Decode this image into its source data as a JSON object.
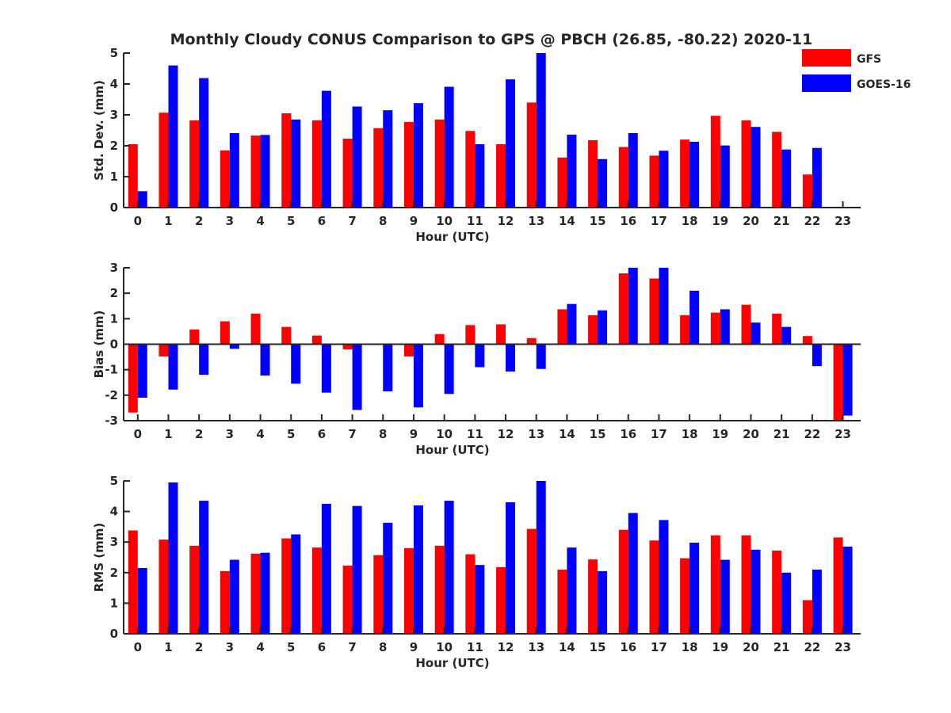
{
  "title": "Monthly Cloudy CONUS Comparison to GPS @ PBCH (26.85, -80.22) 2020-11",
  "colors": {
    "GFS": "#ff0000",
    "GOES-16": "#0000ff"
  },
  "legend": {
    "placement": "top-right",
    "entries": [
      "GFS",
      "GOES-16"
    ]
  },
  "chart_data": [
    {
      "type": "bar",
      "xlabel": "Hour (UTC)",
      "ylabel": "Std. Dev. (mm)",
      "ylim": [
        0,
        5
      ],
      "yticks": [
        0,
        1,
        2,
        3,
        4,
        5
      ],
      "categories": [
        "0",
        "1",
        "2",
        "3",
        "4",
        "5",
        "6",
        "7",
        "8",
        "9",
        "10",
        "11",
        "12",
        "13",
        "14",
        "15",
        "16",
        "17",
        "18",
        "19",
        "20",
        "21",
        "22",
        "23"
      ],
      "series": [
        {
          "name": "GFS",
          "values": [
            2.05,
            3.07,
            2.82,
            1.85,
            2.33,
            3.05,
            2.82,
            2.23,
            2.57,
            2.77,
            2.85,
            2.48,
            2.05,
            3.4,
            1.62,
            2.18,
            1.96,
            1.68,
            2.2,
            2.97,
            2.82,
            2.45,
            1.07,
            null
          ]
        },
        {
          "name": "GOES-16",
          "values": [
            0.53,
            4.6,
            4.19,
            2.41,
            2.35,
            2.85,
            3.78,
            3.27,
            3.15,
            3.38,
            3.91,
            2.05,
            4.15,
            5.0,
            2.36,
            1.57,
            2.41,
            1.84,
            2.13,
            2.01,
            2.61,
            1.88,
            1.93,
            null
          ]
        }
      ]
    },
    {
      "type": "bar",
      "xlabel": "Hour (UTC)",
      "ylabel": "Bias (mm)",
      "ylim": [
        -3,
        3
      ],
      "yticks": [
        -3,
        -2,
        -1,
        0,
        1,
        2,
        3
      ],
      "categories": [
        "0",
        "1",
        "2",
        "3",
        "4",
        "5",
        "6",
        "7",
        "8",
        "9",
        "10",
        "11",
        "12",
        "13",
        "14",
        "15",
        "16",
        "17",
        "18",
        "19",
        "20",
        "21",
        "22",
        "23"
      ],
      "series": [
        {
          "name": "GFS",
          "values": [
            -2.68,
            -0.48,
            0.58,
            0.9,
            1.2,
            0.68,
            0.34,
            -0.2,
            -0.03,
            -0.48,
            0.4,
            0.75,
            0.78,
            0.24,
            1.37,
            1.14,
            2.78,
            2.58,
            1.14,
            1.24,
            1.55,
            1.2,
            0.32,
            -3.0
          ]
        },
        {
          "name": "GOES-16",
          "values": [
            -2.1,
            -1.78,
            -1.2,
            -0.18,
            -1.23,
            -1.55,
            -1.9,
            -2.58,
            -1.85,
            -2.48,
            -1.95,
            -0.9,
            -1.07,
            -0.97,
            1.58,
            1.33,
            3.0,
            3.0,
            2.1,
            1.37,
            0.85,
            0.68,
            -0.86,
            -2.8
          ]
        }
      ]
    },
    {
      "type": "bar",
      "xlabel": "Hour (UTC)",
      "ylabel": "RMS (mm)",
      "ylim": [
        0,
        5
      ],
      "yticks": [
        0,
        1,
        2,
        3,
        4,
        5
      ],
      "categories": [
        "0",
        "1",
        "2",
        "3",
        "4",
        "5",
        "6",
        "7",
        "8",
        "9",
        "10",
        "11",
        "12",
        "13",
        "14",
        "15",
        "16",
        "17",
        "18",
        "19",
        "20",
        "21",
        "22",
        "23"
      ],
      "series": [
        {
          "name": "GFS",
          "values": [
            3.38,
            3.08,
            2.88,
            2.05,
            2.62,
            3.12,
            2.82,
            2.23,
            2.57,
            2.8,
            2.88,
            2.6,
            2.18,
            3.43,
            2.1,
            2.43,
            3.4,
            3.05,
            2.47,
            3.22,
            3.22,
            2.72,
            1.1,
            3.15
          ]
        },
        {
          "name": "GOES-16",
          "values": [
            2.15,
            4.95,
            4.35,
            2.42,
            2.65,
            3.25,
            4.25,
            4.18,
            3.63,
            4.2,
            4.35,
            2.25,
            4.3,
            5.0,
            2.82,
            2.05,
            3.95,
            3.72,
            2.98,
            2.42,
            2.75,
            2.0,
            2.1,
            2.85
          ]
        }
      ]
    }
  ]
}
